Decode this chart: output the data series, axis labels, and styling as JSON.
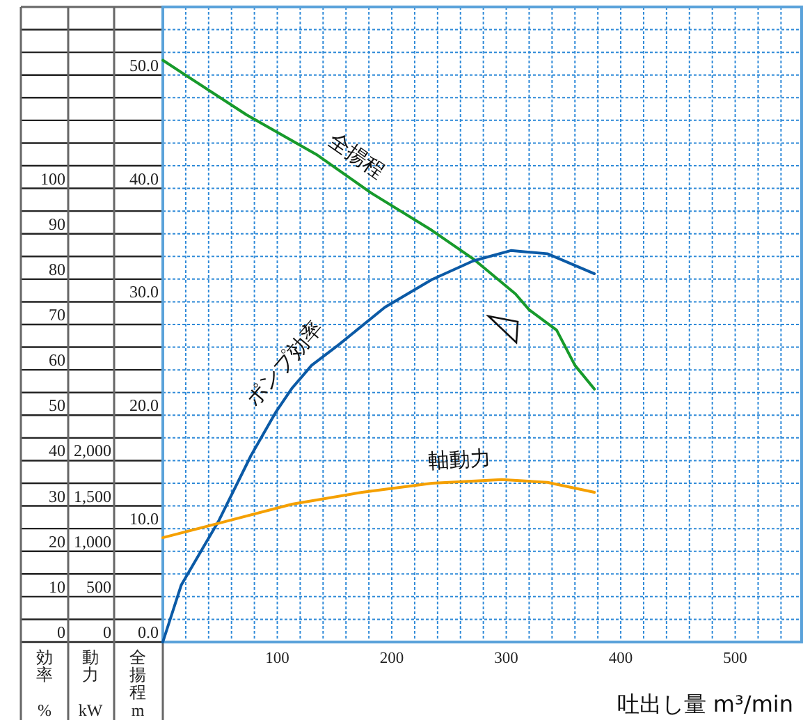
{
  "chart_data": {
    "type": "line",
    "xlabel": "吐出し量 m³/min",
    "ylabel": "全揚程 m",
    "y2label": "効率 %",
    "y3label": "動力 kW",
    "xlim": [
      0,
      558
    ],
    "xticks": [
      {
        "value": 20,
        "label": null
      },
      {
        "value": 40,
        "label": null
      },
      {
        "value": 60,
        "label": null
      },
      {
        "value": 80,
        "label": null
      },
      100,
      {
        "value": 120,
        "label": null
      },
      {
        "value": 140,
        "label": null
      },
      {
        "value": 160,
        "label": null
      },
      {
        "value": 180,
        "label": null
      },
      200,
      {
        "value": 220,
        "label": null
      },
      {
        "value": 240,
        "label": null
      },
      {
        "value": 260,
        "label": null
      },
      {
        "value": 280,
        "label": null
      },
      300,
      {
        "value": 320,
        "label": null
      },
      {
        "value": 340,
        "label": null
      },
      {
        "value": 360,
        "label": null
      },
      {
        "value": 380,
        "label": null
      },
      400,
      {
        "value": 420,
        "label": null
      },
      {
        "value": 440,
        "label": null
      },
      {
        "value": 460,
        "label": null
      },
      {
        "value": 480,
        "label": null
      },
      500,
      {
        "value": 520,
        "label": null
      },
      {
        "value": 540,
        "label": null
      }
    ],
    "ylim": [
      0,
      56
    ],
    "yticks": [
      {
        "value": 0,
        "label": "0.0"
      },
      {
        "value": 2,
        "label": null
      },
      {
        "value": 4,
        "label": null
      },
      {
        "value": 6,
        "label": null
      },
      {
        "value": 8,
        "label": null
      },
      {
        "value": 10,
        "label": "10.0"
      },
      {
        "value": 12,
        "label": null
      },
      {
        "value": 14,
        "label": null
      },
      {
        "value": 16,
        "label": null
      },
      {
        "value": 18,
        "label": null
      },
      {
        "value": 20,
        "label": "20.0"
      },
      {
        "value": 22,
        "label": null
      },
      {
        "value": 24,
        "label": null
      },
      {
        "value": 26,
        "label": null
      },
      {
        "value": 28,
        "label": null
      },
      {
        "value": 30,
        "label": "30.0"
      },
      {
        "value": 32,
        "label": null
      },
      {
        "value": 34,
        "label": null
      },
      {
        "value": 36,
        "label": null
      },
      {
        "value": 38,
        "label": null
      },
      {
        "value": 40,
        "label": "40.0"
      },
      {
        "value": 42,
        "label": null
      },
      {
        "value": 44,
        "label": null
      },
      {
        "value": 46,
        "label": null
      },
      {
        "value": 48,
        "label": null
      },
      {
        "value": 50,
        "label": "50.0"
      },
      {
        "value": 52,
        "label": null
      },
      {
        "value": 54,
        "label": null
      }
    ],
    "y2lim": [
      0,
      140
    ],
    "y2ticks": [
      0,
      10,
      20,
      30,
      40,
      50,
      60,
      70,
      80,
      90,
      100
    ],
    "y3lim": [
      0,
      7000
    ],
    "y3ticks": [
      0,
      500,
      {
        "value": 1000,
        "label": "1,000"
      },
      {
        "value": 1500,
        "label": "1,500"
      },
      {
        "value": 2000,
        "label": "2,000"
      }
    ],
    "grid": true,
    "series": [
      {
        "name": "全揚程",
        "color": "#179a2b",
        "axis": "y",
        "x": [
          0,
          73,
          134,
          182,
          235,
          271,
          308,
          320,
          344,
          360,
          377
        ],
        "values": [
          51.3,
          46.5,
          43.0,
          39.6,
          36.3,
          33.8,
          30.7,
          29.3,
          27.5,
          24.4,
          22.3
        ]
      },
      {
        "name": "ポンプ効率",
        "color": "#0b5aa6",
        "axis": "y2",
        "x": [
          0,
          16,
          49,
          77,
          99,
          113,
          130,
          154,
          194,
          235,
          271,
          304,
          336,
          377
        ],
        "values": [
          0,
          12.5,
          26.8,
          41.1,
          50.8,
          56,
          61,
          65.6,
          73.8,
          79.9,
          84,
          86.3,
          85.6,
          81.2
        ]
      },
      {
        "name": "軸動力",
        "color": "#f5a000",
        "axis": "y3",
        "x": [
          0,
          49,
          113,
          174,
          235,
          296,
          336,
          377
        ],
        "values": [
          1150,
          1310,
          1520,
          1650,
          1750,
          1790,
          1760,
          1650
        ]
      }
    ]
  }
}
